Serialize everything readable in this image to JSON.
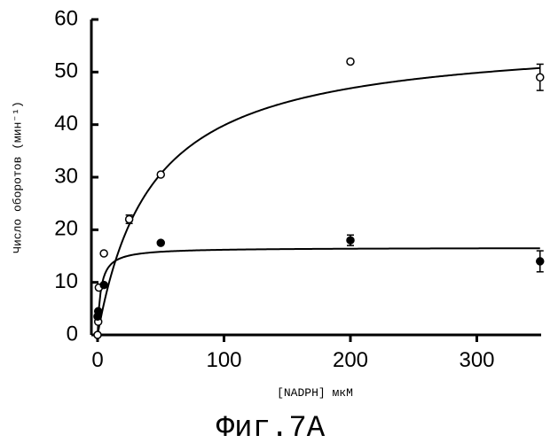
{
  "chart_data": {
    "type": "scatter",
    "xlabel": "[NADPH] мкМ",
    "ylabel": "Число оборотов (мин⁻¹)",
    "caption": "Фиг.7А",
    "xlim": [
      0,
      350
    ],
    "ylim": [
      0,
      60
    ],
    "xticks": [
      0,
      100,
      200,
      300
    ],
    "yticks": [
      0,
      10,
      20,
      30,
      40,
      50,
      60
    ],
    "grid": false,
    "series": [
      {
        "marker": "open-circle",
        "x": [
          0,
          0.5,
          1,
          5,
          25,
          50,
          200,
          350
        ],
        "y": [
          0,
          2.5,
          9,
          15.5,
          22,
          30.5,
          52,
          49
        ],
        "yerr": [
          0,
          0,
          0,
          0,
          0.8,
          0,
          0,
          2.5
        ],
        "fit": {
          "model": "michaelis-menten",
          "vmax": 57,
          "km": 43
        }
      },
      {
        "marker": "filled-circle",
        "x": [
          0,
          0.5,
          5,
          50,
          200,
          350
        ],
        "y": [
          3.5,
          4.5,
          9.5,
          17.5,
          18,
          14
        ],
        "yerr": [
          0,
          0,
          0,
          0,
          1,
          2
        ],
        "fit": {
          "model": "michaelis-menten",
          "vmax": 16.6,
          "km": 2.5
        }
      }
    ]
  }
}
